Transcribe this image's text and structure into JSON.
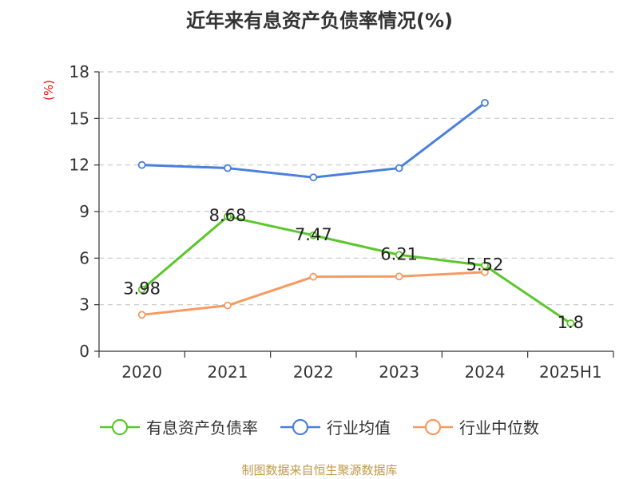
{
  "title": "近年来有息资产负债率情况(%)",
  "source": "制图数据来自恒生聚源数据库",
  "chart_data": {
    "type": "line",
    "title": "近年来有息资产负债率情况(%)",
    "ylabel": "(%)",
    "xlabel": "",
    "categories": [
      "2020",
      "2021",
      "2022",
      "2023",
      "2024",
      "2025H1"
    ],
    "ylim": [
      0,
      18
    ],
    "yticks": [
      0,
      3,
      6,
      9,
      12,
      15,
      18
    ],
    "grid": true,
    "legend_position": "bottom",
    "series": [
      {
        "name": "有息资产负债率",
        "color": "#5bc72a",
        "values": [
          3.98,
          8.68,
          7.47,
          6.21,
          5.52,
          1.8
        ],
        "labels": [
          "3.98",
          "8.68",
          "7.47",
          "6.21",
          "5.52",
          "1.8"
        ]
      },
      {
        "name": "行业均值",
        "color": "#4a7fdc",
        "values": [
          12.0,
          11.8,
          11.2,
          11.8,
          16.0,
          null
        ]
      },
      {
        "name": "行业中位数",
        "color": "#f79a60",
        "values": [
          2.35,
          2.95,
          4.8,
          4.82,
          5.1,
          null
        ]
      }
    ]
  }
}
